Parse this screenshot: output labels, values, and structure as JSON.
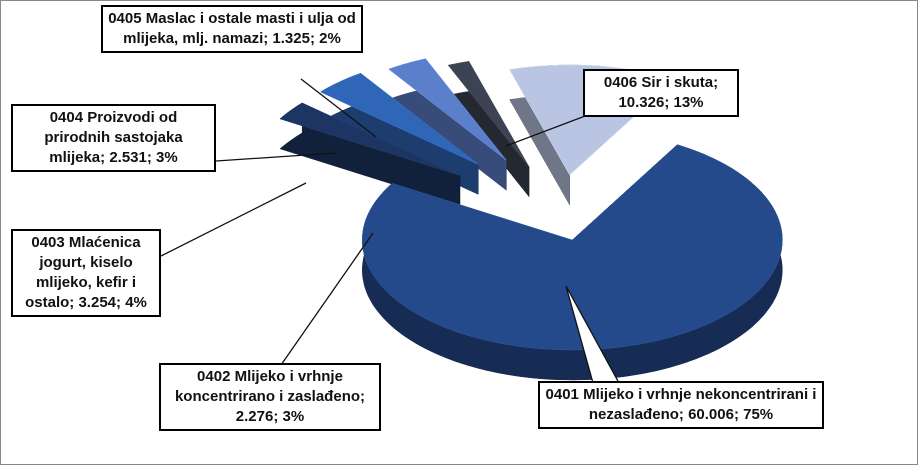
{
  "chart_data": {
    "type": "pie3d",
    "categories": [
      "0401 Mlijeko i vrhnje nekoncentrirani i nezaslađeno;",
      "0402 Mlijeko i vrhnje koncentrirano i zaslađeno;",
      "0403 Mlaćenica jogurt, kiselo mlijeko, kefir i ostalo;",
      "0404 Proizvodi od prirodnih sastojaka mlijeka;",
      "0405 Maslac i ostale masti i ulja od mlijeka, mlj. namazi;",
      "0406 Sir i skuta;"
    ],
    "values": [
      60006,
      2276,
      3254,
      2531,
      1325,
      10326
    ],
    "value_labels": [
      "60.006;",
      "2.276;",
      "3.254;",
      "2.531;",
      "1.325;",
      "10.326;"
    ],
    "percentages": [
      75,
      3,
      4,
      3,
      2,
      13
    ],
    "percentage_labels": [
      "75%",
      "3%",
      "4%",
      "3%",
      "2%",
      "13%"
    ],
    "colors": [
      "#254a8c",
      "#1d3562",
      "#2f66b8",
      "#5b7fca",
      "#3c4352",
      "#b9c5e2"
    ]
  }
}
